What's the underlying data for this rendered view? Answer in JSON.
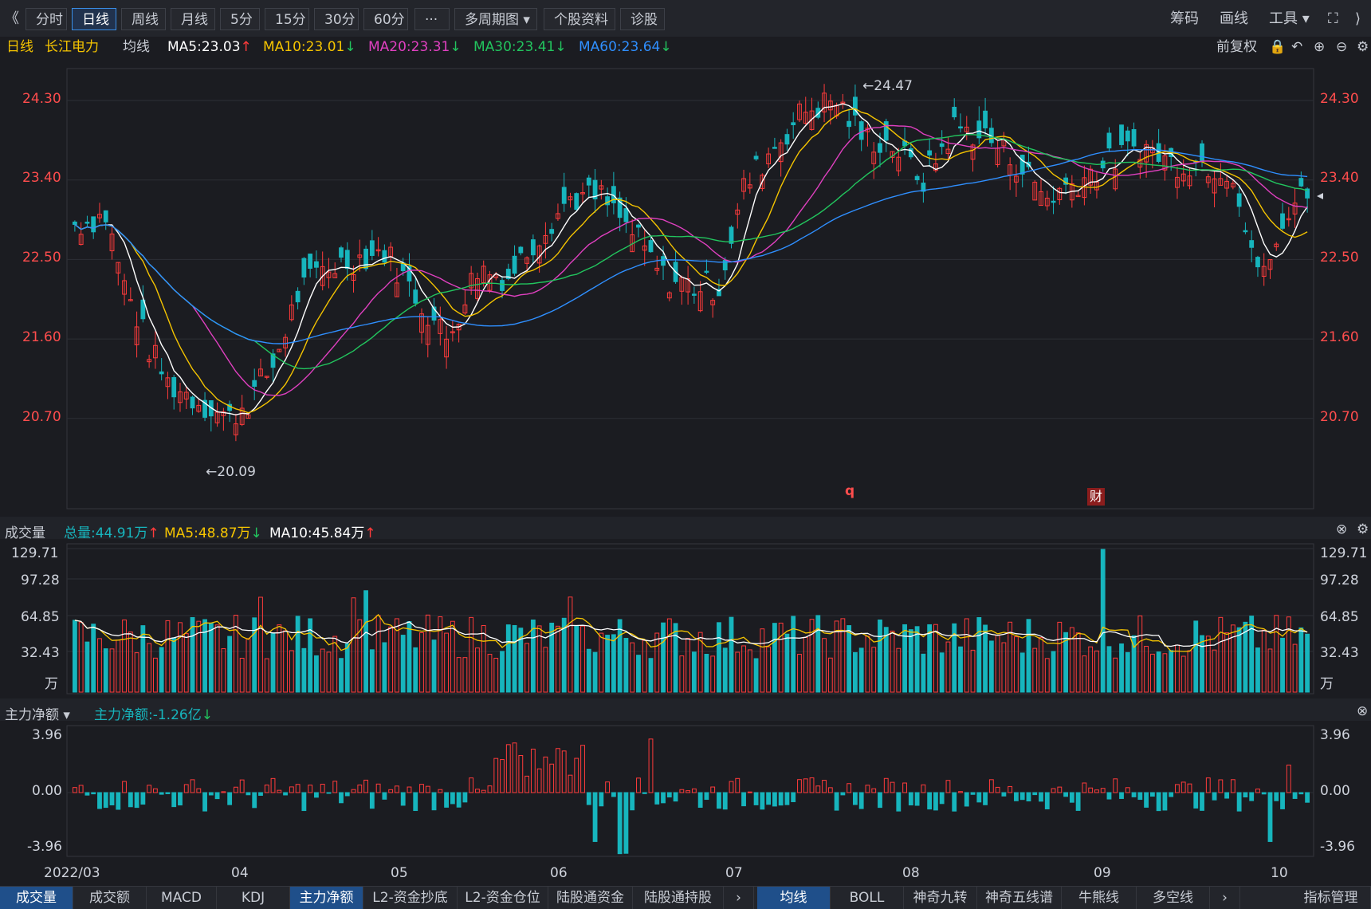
{
  "toolbar": {
    "nav_back": "《",
    "buttons": [
      "分时",
      "日线",
      "周线",
      "月线",
      "5分",
      "15分",
      "30分",
      "60分",
      "···",
      "多周期图",
      "个股资料",
      "诊股"
    ],
    "active": "日线",
    "right": [
      "筹码",
      "画线",
      "工具"
    ]
  },
  "info": {
    "period": "日线",
    "stock_name": "长江电力",
    "ma_label": "均线",
    "ma5": "MA5:23.03",
    "ma10": "MA10:23.01",
    "ma20": "MA20:23.31",
    "ma30": "MA30:23.41",
    "ma60": "MA60:23.64",
    "adjust": "前复权"
  },
  "colors": {
    "up": "#ff3b3b",
    "down": "#17b5bd",
    "ma5": "#ffffff",
    "ma10": "#f5c400",
    "ma20": "#e040c0",
    "ma30": "#22c55e",
    "ma60": "#2f8fff"
  },
  "price_axis": {
    "ticks": [
      "24.30",
      "23.40",
      "22.50",
      "21.60",
      "20.70"
    ],
    "max_label": "24.47",
    "min_label": "20.09"
  },
  "volume_panel": {
    "title": "成交量",
    "total": "总量:44.91万",
    "ma5": "MA5:48.87万",
    "ma10": "MA10:45.84万",
    "ticks": [
      "129.71",
      "97.28",
      "64.85",
      "32.43"
    ],
    "unit": "万"
  },
  "money_panel": {
    "title": "主力净额",
    "value": "主力净额:-1.26亿",
    "ticks": [
      "3.96",
      "0.00",
      "-3.96"
    ]
  },
  "x_axis": [
    "2022/03",
    "04",
    "05",
    "06",
    "07",
    "08",
    "09",
    "10"
  ],
  "markers": {
    "q": "q",
    "cai": "财"
  },
  "bottom_tabs": [
    "成交量",
    "成交额",
    "MACD",
    "KDJ",
    "主力净额",
    "L2-资金抄底",
    "L2-资金仓位",
    "陆股通资金",
    "陆股通持股",
    "均线",
    "BOLL",
    "神奇九转",
    "神奇五线谱",
    "牛熊线",
    "多空线",
    "指标管理"
  ],
  "chart_data": {
    "type": "candlestick",
    "title": "长江电力 日线",
    "x_range": [
      "2022/03",
      "2022/10"
    ],
    "ylim": [
      20.09,
      24.47
    ],
    "series": [
      {
        "name": "MA5",
        "last": 23.03
      },
      {
        "name": "MA10",
        "last": 23.01
      },
      {
        "name": "MA20",
        "last": 23.31
      },
      {
        "name": "MA30",
        "last": 23.41
      },
      {
        "name": "MA60",
        "last": 23.64
      }
    ],
    "volume": {
      "total": 44.91,
      "ma5": 48.87,
      "ma10": 45.84,
      "ylim": [
        0,
        129.71
      ]
    },
    "main_net": {
      "last": -1.26,
      "ylim": [
        -3.96,
        3.96
      ]
    }
  }
}
